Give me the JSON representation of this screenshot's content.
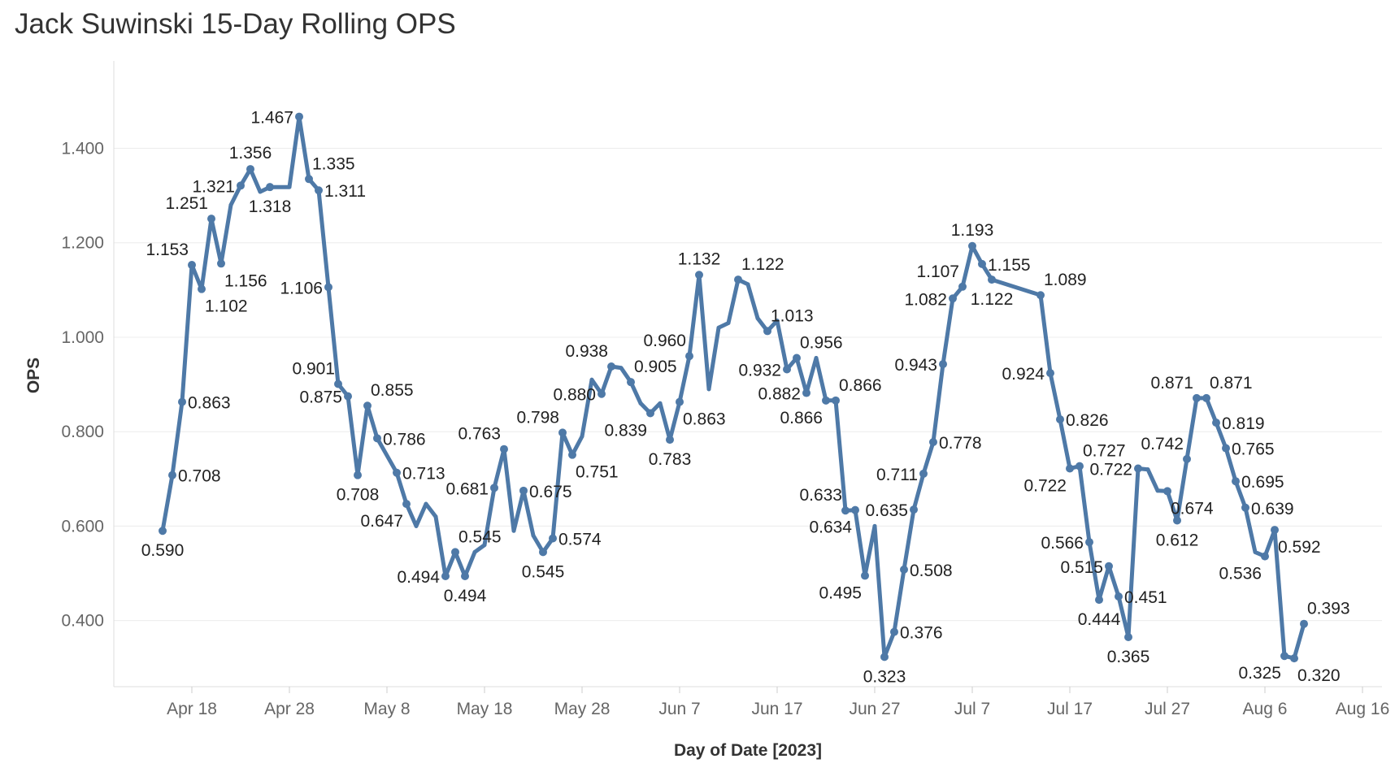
{
  "chart_data": {
    "type": "line",
    "title": "Jack Suwinski 15-Day Rolling OPS",
    "xlabel": "Day of Date [2023]",
    "ylabel": "OPS",
    "xlim": [
      "2023-04-10",
      "2023-08-18"
    ],
    "ylim": [
      0.26,
      1.585
    ],
    "y_ticks": [
      0.4,
      0.6,
      0.8,
      1.0,
      1.2,
      1.4
    ],
    "y_tick_labels": [
      "0.400",
      "0.600",
      "0.800",
      "1.000",
      "1.200",
      "1.400"
    ],
    "x_ticks": [
      "2023-04-18",
      "2023-04-28",
      "2023-05-08",
      "2023-05-18",
      "2023-05-28",
      "2023-06-07",
      "2023-06-17",
      "2023-06-27",
      "2023-07-07",
      "2023-07-17",
      "2023-07-27",
      "2023-08-06",
      "2023-08-16"
    ],
    "x_tick_labels": [
      "Apr 18",
      "Apr 28",
      "May 8",
      "May 18",
      "May 28",
      "Jun 7",
      "Jun 17",
      "Jun 27",
      "Jul 7",
      "Jul 17",
      "Jul 27",
      "Aug 6",
      "Aug 16"
    ],
    "grid": true,
    "line_color": "#4e79a7",
    "label_color": "#222222",
    "series": [
      {
        "points": [
          {
            "x": "2023-04-15",
            "y": 0.59,
            "label": "0.590",
            "label_pos": "below"
          },
          {
            "x": "2023-04-16",
            "y": 0.708,
            "label": "0.708",
            "label_pos": "right"
          },
          {
            "x": "2023-04-17",
            "y": 0.863,
            "label": "0.863",
            "label_pos": "right"
          },
          {
            "x": "2023-04-18",
            "y": 1.153,
            "label": "1.153",
            "label_pos": "above-left"
          },
          {
            "x": "2023-04-19",
            "y": 1.102,
            "label": "1.102",
            "label_pos": "below-right"
          },
          {
            "x": "2023-04-20",
            "y": 1.251,
            "label": "1.251",
            "label_pos": "above-left"
          },
          {
            "x": "2023-04-21",
            "y": 1.156,
            "label": "1.156",
            "label_pos": "below-right"
          },
          {
            "x": "2023-04-22",
            "y": 1.28
          },
          {
            "x": "2023-04-23",
            "y": 1.321,
            "label": "1.321",
            "label_pos": "left"
          },
          {
            "x": "2023-04-24",
            "y": 1.356,
            "label": "1.356",
            "label_pos": "above"
          },
          {
            "x": "2023-04-25",
            "y": 1.308
          },
          {
            "x": "2023-04-26",
            "y": 1.318,
            "label": "1.318",
            "label_pos": "below"
          },
          {
            "x": "2023-04-28",
            "y": 1.318
          },
          {
            "x": "2023-04-29",
            "y": 1.467,
            "label": "1.467",
            "label_pos": "left"
          },
          {
            "x": "2023-04-30",
            "y": 1.335,
            "label": "1.335",
            "label_pos": "above-right"
          },
          {
            "x": "2023-05-01",
            "y": 1.311,
            "label": "1.311",
            "label_pos": "right"
          },
          {
            "x": "2023-05-02",
            "y": 1.106,
            "label": "1.106",
            "label_pos": "left"
          },
          {
            "x": "2023-05-03",
            "y": 0.901,
            "label": "0.901",
            "label_pos": "above-left"
          },
          {
            "x": "2023-05-04",
            "y": 0.875,
            "label": "0.875",
            "label_pos": "left"
          },
          {
            "x": "2023-05-05",
            "y": 0.708,
            "label": "0.708",
            "label_pos": "below"
          },
          {
            "x": "2023-05-06",
            "y": 0.855,
            "label": "0.855",
            "label_pos": "above-right"
          },
          {
            "x": "2023-05-07",
            "y": 0.786,
            "label": "0.786",
            "label_pos": "right"
          },
          {
            "x": "2023-05-09",
            "y": 0.713,
            "label": "0.713",
            "label_pos": "right"
          },
          {
            "x": "2023-05-10",
            "y": 0.647,
            "label": "0.647",
            "label_pos": "below-left"
          },
          {
            "x": "2023-05-11",
            "y": 0.6
          },
          {
            "x": "2023-05-12",
            "y": 0.647
          },
          {
            "x": "2023-05-13",
            "y": 0.62
          },
          {
            "x": "2023-05-14",
            "y": 0.494,
            "label": "0.494",
            "label_pos": "left"
          },
          {
            "x": "2023-05-15",
            "y": 0.545,
            "label": "0.545",
            "label_pos": "above-right"
          },
          {
            "x": "2023-05-16",
            "y": 0.494,
            "label": "0.494",
            "label_pos": "below"
          },
          {
            "x": "2023-05-17",
            "y": 0.545
          },
          {
            "x": "2023-05-18",
            "y": 0.56
          },
          {
            "x": "2023-05-19",
            "y": 0.681,
            "label": "0.681",
            "label_pos": "left"
          },
          {
            "x": "2023-05-20",
            "y": 0.763,
            "label": "0.763",
            "label_pos": "above-left"
          },
          {
            "x": "2023-05-21",
            "y": 0.59
          },
          {
            "x": "2023-05-22",
            "y": 0.675,
            "label": "0.675",
            "label_pos": "right"
          },
          {
            "x": "2023-05-23",
            "y": 0.58
          },
          {
            "x": "2023-05-24",
            "y": 0.545,
            "label": "0.545",
            "label_pos": "below"
          },
          {
            "x": "2023-05-25",
            "y": 0.574,
            "label": "0.574",
            "label_pos": "right"
          },
          {
            "x": "2023-05-26",
            "y": 0.798,
            "label": "0.798",
            "label_pos": "above-left"
          },
          {
            "x": "2023-05-27",
            "y": 0.751,
            "label": "0.751",
            "label_pos": "below-right"
          },
          {
            "x": "2023-05-28",
            "y": 0.79
          },
          {
            "x": "2023-05-29",
            "y": 0.91
          },
          {
            "x": "2023-05-30",
            "y": 0.88,
            "label": "0.880",
            "label_pos": "left"
          },
          {
            "x": "2023-05-31",
            "y": 0.938,
            "label": "0.938",
            "label_pos": "above-left"
          },
          {
            "x": "2023-06-01",
            "y": 0.935
          },
          {
            "x": "2023-06-02",
            "y": 0.905,
            "label": "0.905",
            "label_pos": "above-right"
          },
          {
            "x": "2023-06-03",
            "y": 0.86
          },
          {
            "x": "2023-06-04",
            "y": 0.839,
            "label": "0.839",
            "label_pos": "below-left"
          },
          {
            "x": "2023-06-05",
            "y": 0.86
          },
          {
            "x": "2023-06-06",
            "y": 0.783,
            "label": "0.783",
            "label_pos": "below"
          },
          {
            "x": "2023-06-07",
            "y": 0.863,
            "label": "0.863",
            "label_pos": "below-right"
          },
          {
            "x": "2023-06-08",
            "y": 0.96,
            "label": "0.960",
            "label_pos": "above-left"
          },
          {
            "x": "2023-06-09",
            "y": 1.132,
            "label": "1.132",
            "label_pos": "above"
          },
          {
            "x": "2023-06-10",
            "y": 0.89
          },
          {
            "x": "2023-06-11",
            "y": 1.02
          },
          {
            "x": "2023-06-12",
            "y": 1.03
          },
          {
            "x": "2023-06-13",
            "y": 1.122,
            "label": "1.122",
            "label_pos": "above-right"
          },
          {
            "x": "2023-06-14",
            "y": 1.112
          },
          {
            "x": "2023-06-15",
            "y": 1.04
          },
          {
            "x": "2023-06-16",
            "y": 1.013,
            "label": "1.013",
            "label_pos": "above-right"
          },
          {
            "x": "2023-06-17",
            "y": 1.035
          },
          {
            "x": "2023-06-18",
            "y": 0.932,
            "label": "0.932",
            "label_pos": "left"
          },
          {
            "x": "2023-06-19",
            "y": 0.956,
            "label": "0.956",
            "label_pos": "above-right"
          },
          {
            "x": "2023-06-20",
            "y": 0.882,
            "label": "0.882",
            "label_pos": "left"
          },
          {
            "x": "2023-06-21",
            "y": 0.956
          },
          {
            "x": "2023-06-22",
            "y": 0.866,
            "label": "0.866",
            "label_pos": "below-left"
          },
          {
            "x": "2023-06-23",
            "y": 0.866,
            "label": "0.866",
            "label_pos": "above-right"
          },
          {
            "x": "2023-06-24",
            "y": 0.633,
            "label": "0.633",
            "label_pos": "above-left"
          },
          {
            "x": "2023-06-25",
            "y": 0.634,
            "label": "0.634",
            "label_pos": "below-left"
          },
          {
            "x": "2023-06-26",
            "y": 0.495,
            "label": "0.495",
            "label_pos": "below-left"
          },
          {
            "x": "2023-06-27",
            "y": 0.6
          },
          {
            "x": "2023-06-28",
            "y": 0.323,
            "label": "0.323",
            "label_pos": "below"
          },
          {
            "x": "2023-06-29",
            "y": 0.376,
            "label": "0.376",
            "label_pos": "right"
          },
          {
            "x": "2023-06-30",
            "y": 0.508,
            "label": "0.508",
            "label_pos": "right"
          },
          {
            "x": "2023-07-01",
            "y": 0.635,
            "label": "0.635",
            "label_pos": "left"
          },
          {
            "x": "2023-07-02",
            "y": 0.711,
            "label": "0.711",
            "label_pos": "left"
          },
          {
            "x": "2023-07-03",
            "y": 0.778,
            "label": "0.778",
            "label_pos": "right"
          },
          {
            "x": "2023-07-04",
            "y": 0.943,
            "label": "0.943",
            "label_pos": "left"
          },
          {
            "x": "2023-07-05",
            "y": 1.082,
            "label": "1.082",
            "label_pos": "left"
          },
          {
            "x": "2023-07-06",
            "y": 1.107,
            "label": "1.107",
            "label_pos": "above-left"
          },
          {
            "x": "2023-07-07",
            "y": 1.193,
            "label": "1.193",
            "label_pos": "above"
          },
          {
            "x": "2023-07-08",
            "y": 1.155,
            "label": "1.155",
            "label_pos": "right"
          },
          {
            "x": "2023-07-09",
            "y": 1.122,
            "label": "1.122",
            "label_pos": "below"
          },
          {
            "x": "2023-07-14",
            "y": 1.089,
            "label": "1.089",
            "label_pos": "above-right"
          },
          {
            "x": "2023-07-15",
            "y": 0.924,
            "label": "0.924",
            "label_pos": "left"
          },
          {
            "x": "2023-07-16",
            "y": 0.826,
            "label": "0.826",
            "label_pos": "right"
          },
          {
            "x": "2023-07-17",
            "y": 0.722,
            "label": "0.722",
            "label_pos": "below-left"
          },
          {
            "x": "2023-07-18",
            "y": 0.727,
            "label": "0.727",
            "label_pos": "above-right"
          },
          {
            "x": "2023-07-19",
            "y": 0.566,
            "label": "0.566",
            "label_pos": "left"
          },
          {
            "x": "2023-07-20",
            "y": 0.444,
            "label": "0.444",
            "label_pos": "below"
          },
          {
            "x": "2023-07-21",
            "y": 0.515,
            "label": "0.515",
            "label_pos": "left"
          },
          {
            "x": "2023-07-22",
            "y": 0.451,
            "label": "0.451",
            "label_pos": "right"
          },
          {
            "x": "2023-07-23",
            "y": 0.365,
            "label": "0.365",
            "label_pos": "below"
          },
          {
            "x": "2023-07-24",
            "y": 0.722,
            "label": "0.722",
            "label_pos": "left"
          },
          {
            "x": "2023-07-25",
            "y": 0.72
          },
          {
            "x": "2023-07-26",
            "y": 0.675
          },
          {
            "x": "2023-07-27",
            "y": 0.674,
            "label": "0.674",
            "label_pos": "below-right"
          },
          {
            "x": "2023-07-28",
            "y": 0.612,
            "label": "0.612",
            "label_pos": "below"
          },
          {
            "x": "2023-07-29",
            "y": 0.742,
            "label": "0.742",
            "label_pos": "above-left"
          },
          {
            "x": "2023-07-30",
            "y": 0.871,
            "label": "0.871",
            "label_pos": "above-left"
          },
          {
            "x": "2023-07-31",
            "y": 0.871,
            "label": "0.871",
            "label_pos": "above-right"
          },
          {
            "x": "2023-08-01",
            "y": 0.819,
            "label": "0.819",
            "label_pos": "right"
          },
          {
            "x": "2023-08-02",
            "y": 0.765,
            "label": "0.765",
            "label_pos": "right"
          },
          {
            "x": "2023-08-03",
            "y": 0.695,
            "label": "0.695",
            "label_pos": "right"
          },
          {
            "x": "2023-08-04",
            "y": 0.639,
            "label": "0.639",
            "label_pos": "right"
          },
          {
            "x": "2023-08-05",
            "y": 0.545
          },
          {
            "x": "2023-08-06",
            "y": 0.536,
            "label": "0.536",
            "label_pos": "below-left"
          },
          {
            "x": "2023-08-07",
            "y": 0.592,
            "label": "0.592",
            "label_pos": "below-right"
          },
          {
            "x": "2023-08-08",
            "y": 0.325,
            "label": "0.325",
            "label_pos": "below-left"
          },
          {
            "x": "2023-08-09",
            "y": 0.32,
            "label": "0.320",
            "label_pos": "below-right"
          },
          {
            "x": "2023-08-10",
            "y": 0.393,
            "label": "0.393",
            "label_pos": "above-right"
          }
        ]
      }
    ]
  }
}
